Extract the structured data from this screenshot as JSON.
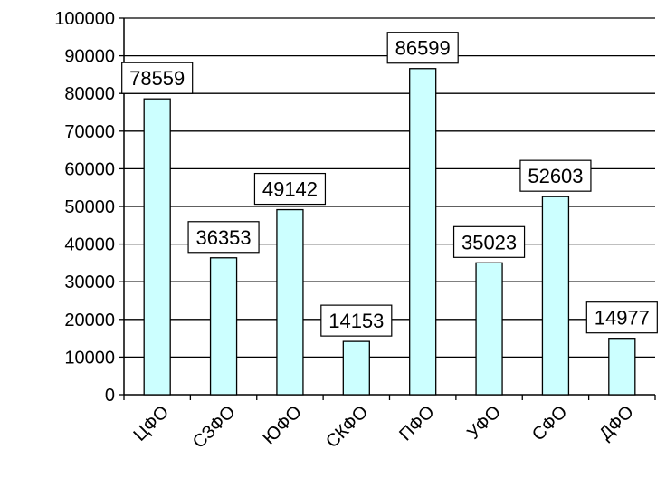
{
  "chart_data": {
    "type": "bar",
    "categories": [
      "ЦФО",
      "СЗФО",
      "ЮФО",
      "СКФО",
      "ПФО",
      "УФО",
      "СФО",
      "ДФО"
    ],
    "values": [
      78559,
      36353,
      49142,
      14153,
      86599,
      35023,
      52603,
      14977
    ],
    "title": "",
    "xlabel": "",
    "ylabel": "",
    "ylim": [
      0,
      100000
    ],
    "yticks": [
      0,
      10000,
      20000,
      30000,
      40000,
      50000,
      60000,
      70000,
      80000,
      90000,
      100000
    ],
    "grid": true,
    "legend": "none",
    "colors": {
      "bar_fill": "#CCFFFF",
      "bar_stroke": "#000000",
      "grid": "#000000",
      "label_box_fill": "#FFFFFF",
      "label_box_stroke": "#000000"
    }
  }
}
